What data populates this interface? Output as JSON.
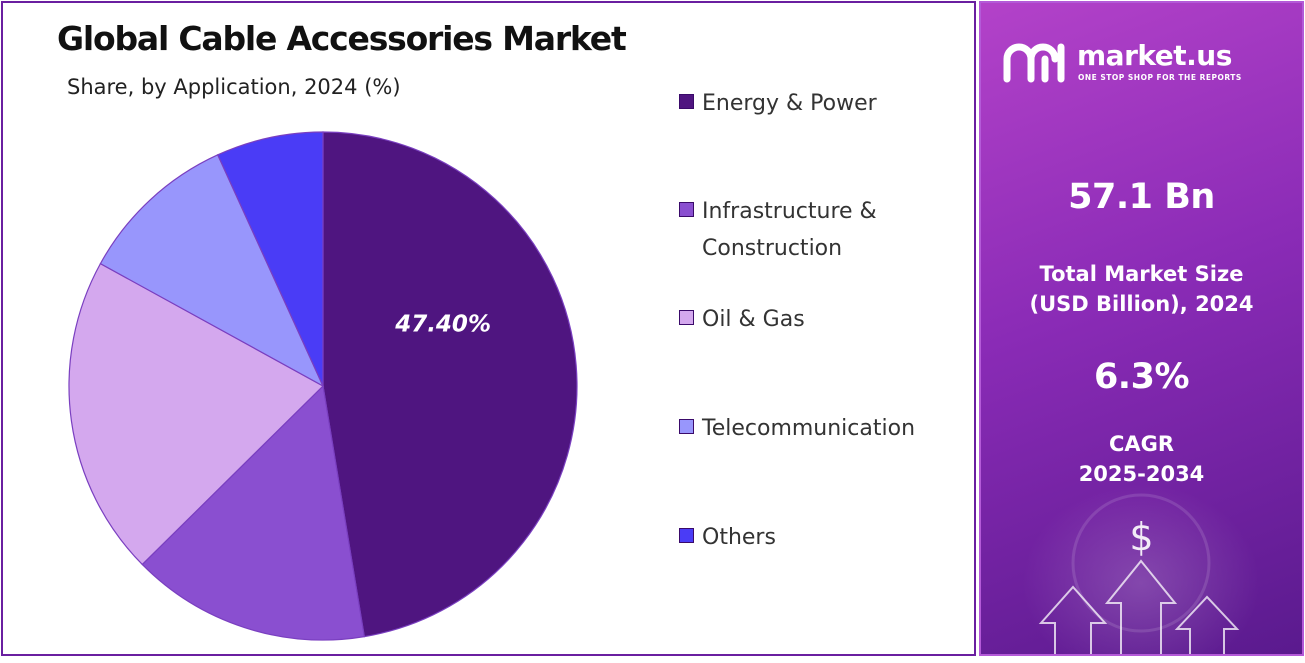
{
  "chart_data": {
    "type": "pie",
    "title": "Global Cable Accessories Market",
    "subtitle": "Share, by Application, 2024 (%)",
    "categories": [
      "Energy & Power",
      "Infrastructure & Construction",
      "Oil & Gas",
      "Telecommunication",
      "Others"
    ],
    "values": [
      47.4,
      15.2,
      20.4,
      10.2,
      6.8
    ],
    "data_labels": [
      "47.40%",
      "",
      "",
      "",
      ""
    ],
    "colors": [
      "#4f1580",
      "#8a4fd0",
      "#d4a8ee",
      "#9896fc",
      "#4a3cf6"
    ],
    "legend_position": "right"
  },
  "side_panel": {
    "brand": "market.us",
    "tagline": "ONE STOP SHOP FOR THE REPORTS",
    "market_size_value": "57.1 Bn",
    "market_size_label_1": "Total Market Size",
    "market_size_label_2": "(USD Billion), 2024",
    "cagr_value": "6.3%",
    "cagr_label_1": "CAGR",
    "cagr_label_2": "2025-2034",
    "dollar_symbol": "$",
    "logo_icon": "market-us-logo-icon",
    "decor_icon": "growth-arrows-icon",
    "panel_color": "#8a2bb6"
  }
}
